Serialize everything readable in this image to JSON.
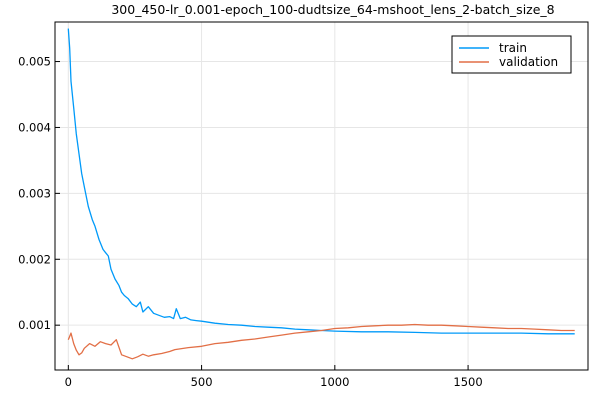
{
  "chart_data": {
    "type": "line",
    "title": "300_450-lr_0.001-epoch_100-dudtsize_64-mshoot_lens_2-batch_size_8",
    "xlabel": "",
    "ylabel": "",
    "xlim": [
      -50,
      1950
    ],
    "ylim": [
      0.00032,
      0.0056
    ],
    "xticks": [
      0,
      500,
      1000,
      1500
    ],
    "xtick_labels": [
      "0",
      "500",
      "1000",
      "1500"
    ],
    "yticks": [
      0.001,
      0.002,
      0.003,
      0.004,
      0.005
    ],
    "ytick_labels": [
      "0.001",
      "0.002",
      "0.003",
      "0.004",
      "0.005"
    ],
    "grid": true,
    "legend_position": "top-right",
    "series": [
      {
        "name": "train",
        "color": "#009af9",
        "x": [
          0,
          5,
          10,
          20,
          30,
          40,
          50,
          60,
          75,
          90,
          100,
          115,
          130,
          140,
          150,
          160,
          175,
          190,
          200,
          210,
          225,
          240,
          255,
          270,
          280,
          300,
          320,
          340,
          360,
          380,
          395,
          405,
          420,
          440,
          460,
          480,
          500,
          550,
          600,
          650,
          700,
          750,
          800,
          850,
          900,
          950,
          1000,
          1100,
          1200,
          1300,
          1400,
          1500,
          1600,
          1700,
          1800,
          1900
        ],
        "y": [
          0.0055,
          0.0052,
          0.0047,
          0.0043,
          0.0039,
          0.0036,
          0.0033,
          0.0031,
          0.0028,
          0.0026,
          0.0025,
          0.0023,
          0.00215,
          0.0021,
          0.00205,
          0.00185,
          0.0017,
          0.0016,
          0.0015,
          0.00145,
          0.0014,
          0.00132,
          0.00128,
          0.00135,
          0.0012,
          0.00128,
          0.00118,
          0.00115,
          0.00112,
          0.00113,
          0.0011,
          0.00125,
          0.0011,
          0.00112,
          0.00108,
          0.00107,
          0.00106,
          0.00103,
          0.00101,
          0.001,
          0.00098,
          0.00097,
          0.00096,
          0.00094,
          0.00093,
          0.00092,
          0.00091,
          0.0009,
          0.0009,
          0.00089,
          0.00088,
          0.00088,
          0.00088,
          0.00088,
          0.00087,
          0.00087
        ]
      },
      {
        "name": "validation",
        "color": "#e26f46",
        "x": [
          0,
          10,
          20,
          30,
          40,
          50,
          60,
          80,
          100,
          120,
          140,
          160,
          180,
          200,
          220,
          240,
          260,
          280,
          300,
          320,
          350,
          380,
          400,
          450,
          500,
          550,
          600,
          650,
          700,
          750,
          800,
          850,
          900,
          950,
          1000,
          1050,
          1100,
          1150,
          1200,
          1250,
          1300,
          1350,
          1400,
          1450,
          1500,
          1550,
          1600,
          1650,
          1700,
          1750,
          1800,
          1850,
          1900
        ],
        "y": [
          0.00078,
          0.00088,
          0.00072,
          0.00062,
          0.00055,
          0.00058,
          0.00065,
          0.00072,
          0.00068,
          0.00075,
          0.00072,
          0.0007,
          0.00078,
          0.00055,
          0.00052,
          0.00049,
          0.00052,
          0.00056,
          0.00053,
          0.00055,
          0.00057,
          0.0006,
          0.00063,
          0.00066,
          0.00068,
          0.00072,
          0.00074,
          0.00077,
          0.00079,
          0.00082,
          0.00085,
          0.00088,
          0.0009,
          0.00092,
          0.00095,
          0.00096,
          0.00098,
          0.00099,
          0.001,
          0.001,
          0.00101,
          0.001,
          0.001,
          0.00099,
          0.00098,
          0.00097,
          0.00096,
          0.00095,
          0.00095,
          0.00094,
          0.00093,
          0.00092,
          0.00092
        ]
      }
    ]
  }
}
